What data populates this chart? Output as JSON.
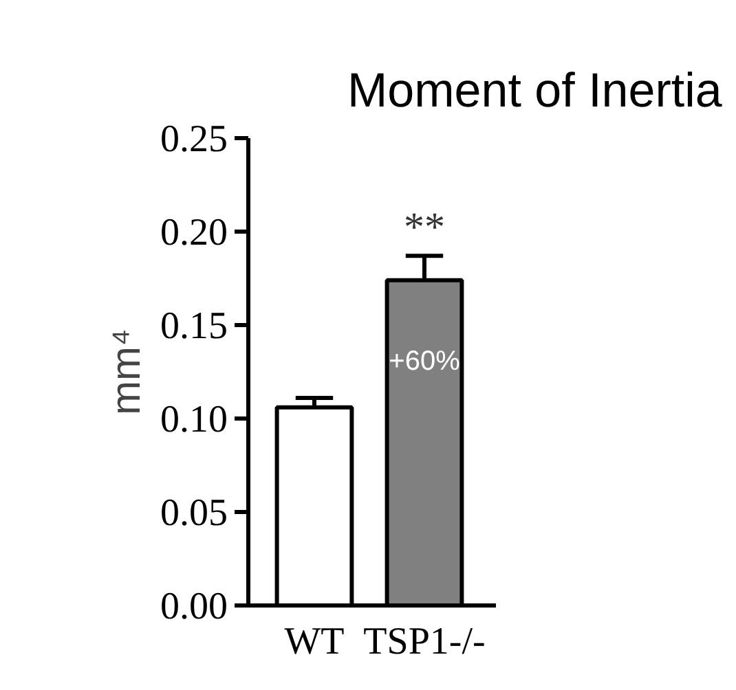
{
  "chart_data": {
    "type": "bar",
    "title": "Moment of Inertia",
    "ylabel": "mm⁴",
    "categories": [
      "WT",
      "TSP1-/-"
    ],
    "values": [
      0.106,
      0.174
    ],
    "errors": [
      0.005,
      0.013
    ],
    "colors": [
      "#ffffff",
      "#808080"
    ],
    "ylim": [
      0,
      0.25
    ],
    "yticks": [
      {
        "value": 0,
        "label": "0.00"
      },
      {
        "value": 0.05,
        "label": "0.05"
      },
      {
        "value": 0.1,
        "label": "0.10"
      },
      {
        "value": 0.15,
        "label": "0.15"
      },
      {
        "value": 0.2,
        "label": "0.20"
      },
      {
        "value": 0.25,
        "label": "0.25"
      }
    ],
    "annotations": [
      "**",
      "+60%"
    ],
    "grid": false
  }
}
